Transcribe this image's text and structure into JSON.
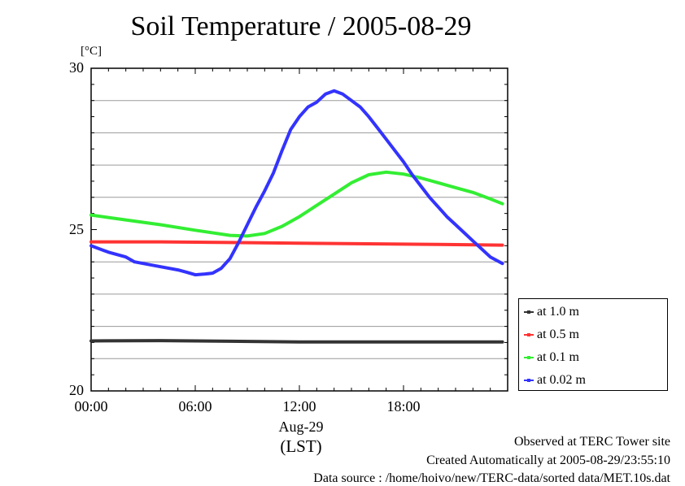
{
  "chart_data": {
    "type": "line",
    "title": "Soil Temperature / 2005-08-29",
    "ylabel": "[°C]",
    "xlabel_date": "Aug-29",
    "xlabel_tz": "(LST)",
    "xlim": [
      0,
      24
    ],
    "ylim": [
      20,
      30
    ],
    "yticks": [
      {
        "value": 20,
        "label": "20"
      },
      {
        "value": 25,
        "label": "25"
      },
      {
        "value": 30,
        "label": "30"
      }
    ],
    "xticks": [
      {
        "value": 0,
        "label": "00:00"
      },
      {
        "value": 6,
        "label": "06:00"
      },
      {
        "value": 12,
        "label": "12:00"
      },
      {
        "value": 18,
        "label": "18:00"
      }
    ],
    "ygrid": [
      21,
      22,
      23,
      24,
      26,
      27,
      28,
      29
    ],
    "grid": true,
    "legend_position": "right-bottom",
    "series": [
      {
        "name": "at 1.0 m",
        "color": "#333333",
        "x": [
          0,
          4,
          8,
          12,
          16,
          20,
          23.7
        ],
        "y": [
          21.55,
          21.56,
          21.54,
          21.52,
          21.52,
          21.52,
          21.52
        ]
      },
      {
        "name": "at 0.5 m",
        "color": "#ff3333",
        "x": [
          0,
          4,
          8,
          12,
          16,
          20,
          23.7
        ],
        "y": [
          24.62,
          24.62,
          24.6,
          24.58,
          24.56,
          24.54,
          24.52
        ]
      },
      {
        "name": "at 0.1 m",
        "color": "#33ee33",
        "x": [
          0,
          2,
          4,
          6,
          8,
          9,
          10,
          11,
          12,
          13,
          14,
          15,
          16,
          17,
          18,
          19,
          20,
          21,
          22,
          23,
          23.7
        ],
        "y": [
          25.45,
          25.3,
          25.15,
          24.98,
          24.82,
          24.8,
          24.88,
          25.1,
          25.4,
          25.75,
          26.1,
          26.45,
          26.7,
          26.78,
          26.72,
          26.6,
          26.45,
          26.3,
          26.15,
          25.95,
          25.8
        ]
      },
      {
        "name": "at 0.02 m",
        "color": "#3333ff",
        "x": [
          0,
          1,
          2,
          2.5,
          3,
          4,
          5,
          5.5,
          6,
          6.5,
          7,
          7.5,
          8,
          8.5,
          9,
          9.5,
          10,
          10.5,
          11,
          11.5,
          12,
          12.5,
          13,
          13.5,
          14,
          14.5,
          15,
          15.5,
          16,
          16.5,
          17,
          17.5,
          18,
          18.5,
          19,
          19.5,
          20,
          20.5,
          21,
          21.5,
          22,
          22.5,
          23,
          23.7
        ],
        "y": [
          24.5,
          24.3,
          24.15,
          24.0,
          23.95,
          23.85,
          23.75,
          23.68,
          23.6,
          23.62,
          23.65,
          23.8,
          24.1,
          24.6,
          25.15,
          25.7,
          26.2,
          26.75,
          27.45,
          28.1,
          28.5,
          28.8,
          28.95,
          29.2,
          29.3,
          29.2,
          29.0,
          28.8,
          28.5,
          28.15,
          27.8,
          27.45,
          27.1,
          26.7,
          26.35,
          26.0,
          25.7,
          25.4,
          25.15,
          24.9,
          24.65,
          24.4,
          24.15,
          23.95
        ]
      }
    ]
  },
  "footer": {
    "line1": "Observed at TERC Tower site",
    "line2": "Created Automatically at 2005-08-29/23:55:10",
    "line3": "Data source : /home/hoivo/new/TERC-data/sorted  data/MET.10s.dat"
  }
}
